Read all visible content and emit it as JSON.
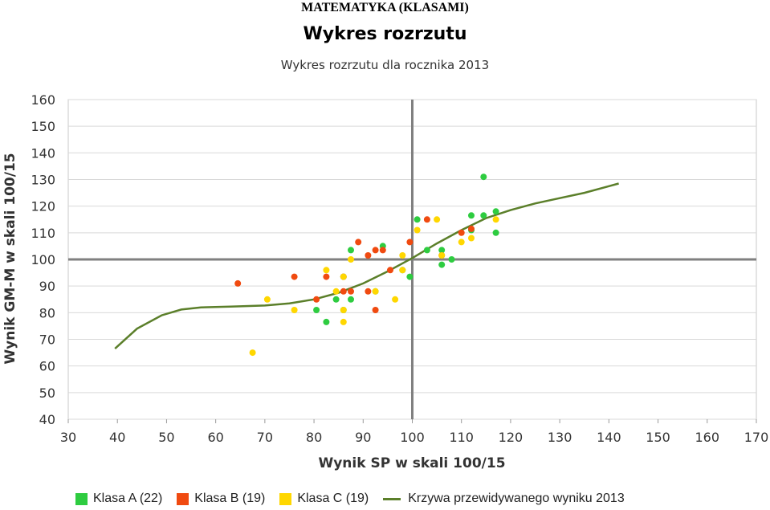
{
  "page_title": "MATEMATYKA (KLASAMI)",
  "colors": {
    "klasa_a": "#2ecc40",
    "klasa_b": "#f04a10",
    "klasa_c": "#ffd700",
    "curve": "#5b7f2a",
    "axis_cross": "#808080",
    "grid": "#d9d9d9"
  },
  "chart_data": {
    "type": "scatter",
    "title": "Wykres rozrzutu",
    "subtitle": "Wykres rozrzutu dla rocznika 2013",
    "xlabel": "Wynik SP w skali 100/15",
    "ylabel": "Wynik GM-M w skali 100/15",
    "xlim": [
      30,
      170
    ],
    "ylim": [
      40,
      160
    ],
    "xticks": [
      30,
      40,
      50,
      60,
      70,
      80,
      90,
      100,
      110,
      120,
      130,
      140,
      150,
      160,
      170
    ],
    "yticks": [
      40,
      50,
      60,
      70,
      80,
      90,
      100,
      110,
      120,
      130,
      140,
      150,
      160
    ],
    "reference_lines": {
      "x": 100,
      "y": 100
    },
    "grid": "horizontal",
    "legend_position": "bottom",
    "series": [
      {
        "name": "Klasa A (22)",
        "color_key": "klasa_a",
        "points": [
          [
            80.5,
            81
          ],
          [
            82.5,
            76.5
          ],
          [
            84.5,
            85
          ],
          [
            86,
            93.5
          ],
          [
            86,
            81
          ],
          [
            87.5,
            85
          ],
          [
            87.5,
            103.5
          ],
          [
            94,
            105
          ],
          [
            99.5,
            93.5
          ],
          [
            101,
            115
          ],
          [
            103,
            103.5
          ],
          [
            106,
            103.5
          ],
          [
            106,
            98
          ],
          [
            108,
            100
          ],
          [
            112,
            116.5
          ],
          [
            112,
            111
          ],
          [
            114.5,
            116.5
          ],
          [
            114.5,
            131
          ],
          [
            117,
            118
          ],
          [
            117,
            110
          ],
          [
            92.5,
            88
          ],
          [
            98,
            96
          ]
        ]
      },
      {
        "name": "Klasa B (19)",
        "color_key": "klasa_b",
        "points": [
          [
            64.5,
            91
          ],
          [
            76,
            93.5
          ],
          [
            80.5,
            85
          ],
          [
            82.5,
            93.5
          ],
          [
            86,
            88
          ],
          [
            87.5,
            88
          ],
          [
            89,
            106.5
          ],
          [
            91,
            101.5
          ],
          [
            91,
            88
          ],
          [
            92.5,
            103.5
          ],
          [
            92.5,
            81
          ],
          [
            94,
            103.5
          ],
          [
            95.5,
            96
          ],
          [
            99.5,
            106.5
          ],
          [
            103,
            115
          ],
          [
            106,
            101.5
          ],
          [
            110,
            110
          ],
          [
            112,
            111.5
          ],
          [
            86,
            93.5
          ]
        ]
      },
      {
        "name": "Klasa C (19)",
        "color_key": "klasa_c",
        "points": [
          [
            67.5,
            65
          ],
          [
            70.5,
            85
          ],
          [
            76,
            81
          ],
          [
            82.5,
            96
          ],
          [
            84.5,
            88
          ],
          [
            86,
            81
          ],
          [
            86,
            76.5
          ],
          [
            87.5,
            100
          ],
          [
            92.5,
            88
          ],
          [
            96.5,
            85
          ],
          [
            98,
            101.5
          ],
          [
            98,
            96
          ],
          [
            101,
            111
          ],
          [
            105,
            115
          ],
          [
            106,
            101.5
          ],
          [
            110,
            106.5
          ],
          [
            112,
            108
          ],
          [
            117,
            115
          ],
          [
            86,
            93.5
          ]
        ]
      },
      {
        "name": "Krzywa przewidywanego wyniku 2013",
        "type": "line",
        "color_key": "curve",
        "points": [
          [
            39.5,
            66.5
          ],
          [
            44,
            74
          ],
          [
            49,
            79
          ],
          [
            53,
            81.2
          ],
          [
            57,
            82
          ],
          [
            63,
            82.3
          ],
          [
            70,
            82.7
          ],
          [
            75,
            83.5
          ],
          [
            80,
            85
          ],
          [
            85,
            87.5
          ],
          [
            90,
            91
          ],
          [
            95,
            95.5
          ],
          [
            100,
            100.5
          ],
          [
            105,
            106
          ],
          [
            110,
            111
          ],
          [
            115,
            115.5
          ],
          [
            120,
            118.5
          ],
          [
            125,
            121
          ],
          [
            130,
            123
          ],
          [
            135,
            125
          ],
          [
            140,
            127.5
          ],
          [
            142,
            128.5
          ]
        ]
      }
    ]
  }
}
